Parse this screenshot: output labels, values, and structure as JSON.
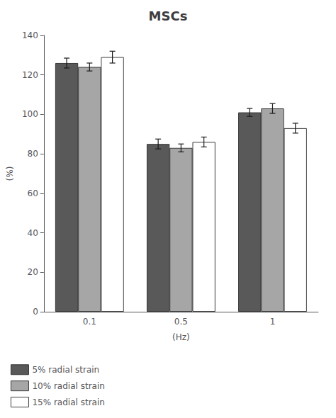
{
  "chart_data": {
    "type": "bar",
    "title": "MSCs",
    "xlabel": "(Hz)",
    "ylabel": "(%)",
    "categories": [
      "0.1",
      "0.5",
      "1"
    ],
    "series": [
      {
        "name": "5% radial strain",
        "color": "#595959",
        "values": [
          126,
          85,
          101
        ],
        "errors": [
          2.5,
          2.5,
          2.0
        ]
      },
      {
        "name": "10% radial strain",
        "color": "#a6a6a6",
        "values": [
          124,
          83,
          103
        ],
        "errors": [
          2.0,
          2.0,
          2.5
        ]
      },
      {
        "name": "15% radial strain",
        "color": "#ffffff",
        "values": [
          129,
          86,
          93
        ],
        "errors": [
          3.0,
          2.5,
          2.5
        ]
      }
    ],
    "ylim": [
      0,
      140
    ],
    "yticks": [
      0,
      20,
      40,
      60,
      80,
      100,
      120,
      140
    ],
    "grid": false,
    "legend": "bottom"
  }
}
